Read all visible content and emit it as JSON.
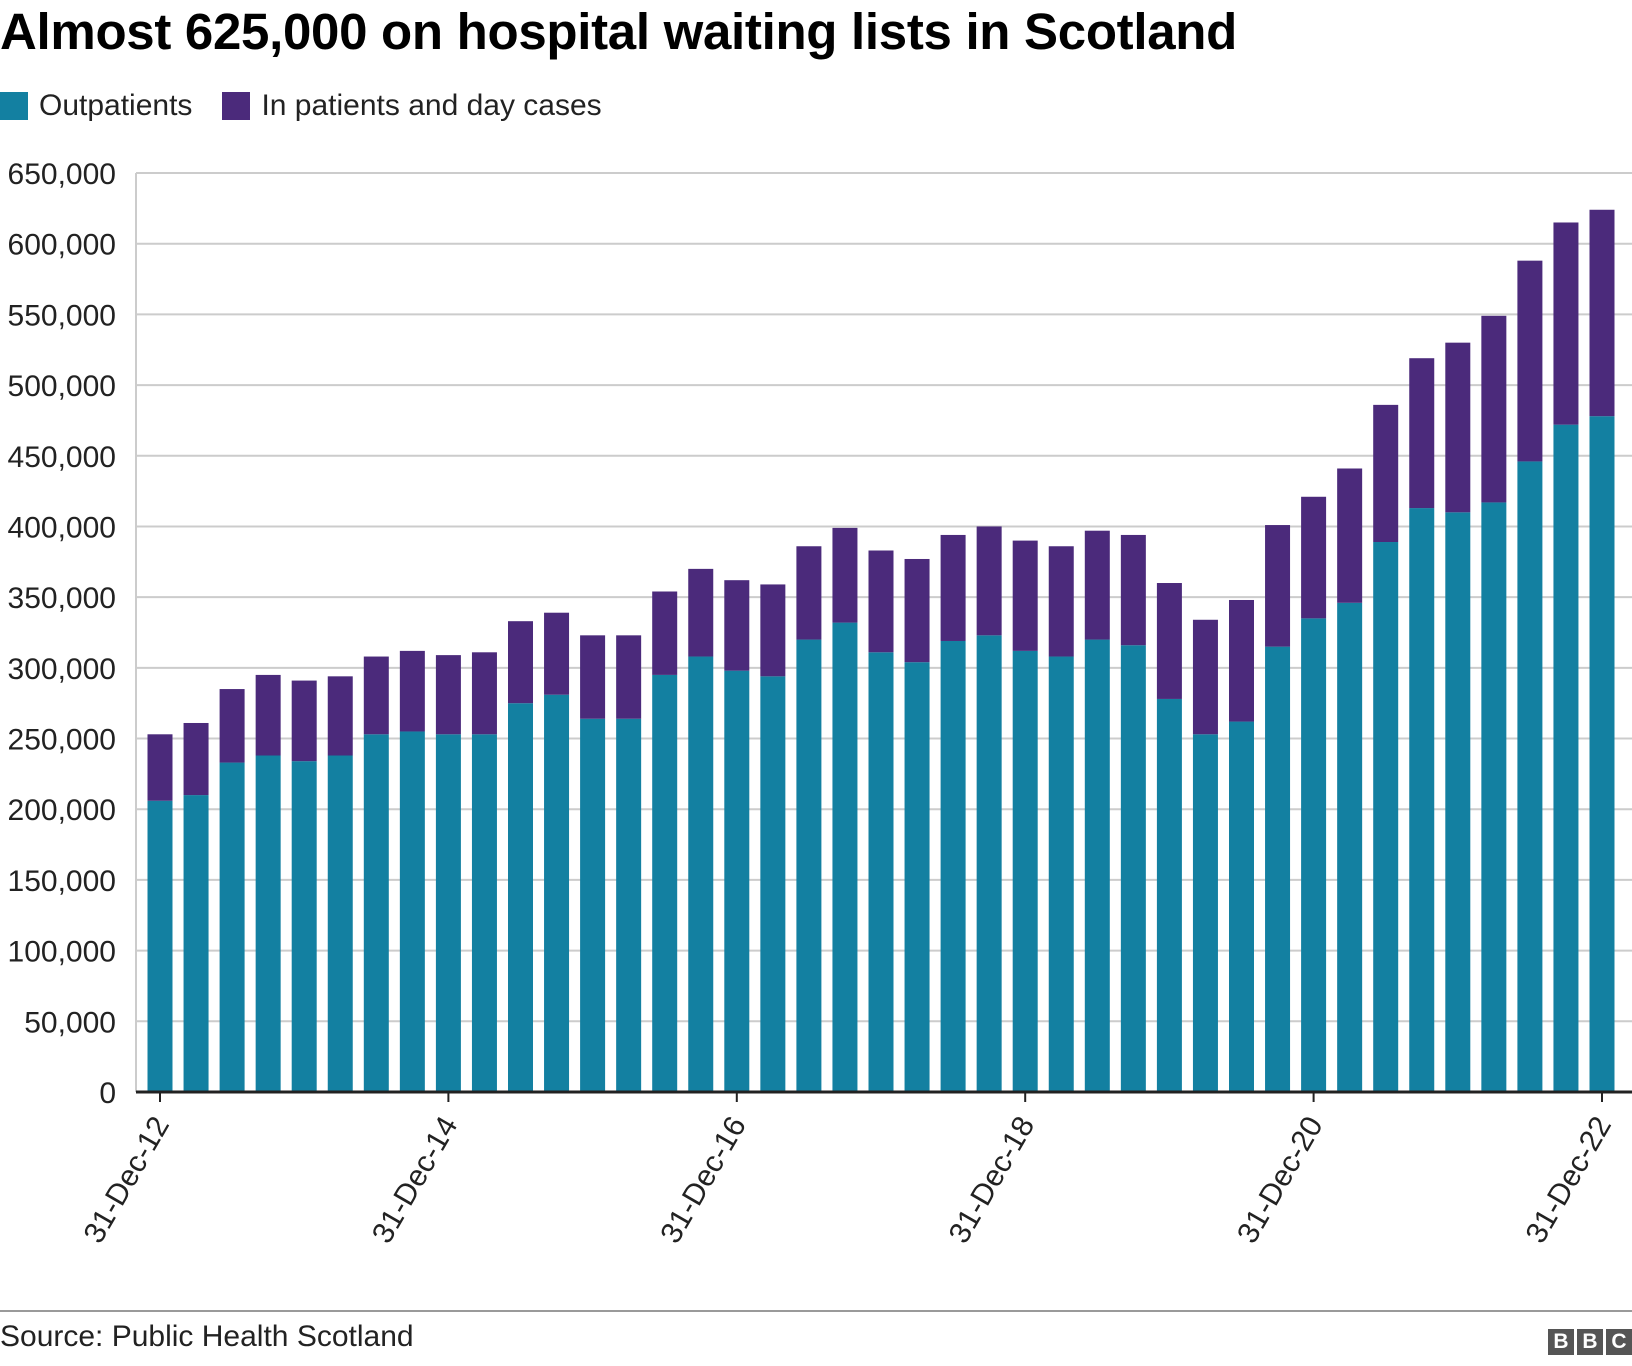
{
  "chart_data": {
    "type": "bar",
    "stacked": true,
    "title": "Almost 625,000 on hospital waiting lists in Scotland",
    "legend": [
      {
        "name": "Outpatients",
        "color": "#1380A1"
      },
      {
        "name": "In patients and day cases",
        "color": "#4B2A7B"
      }
    ],
    "legend_position": "top-left",
    "ylim": [
      0,
      650000
    ],
    "yticks": [
      0,
      50000,
      100000,
      150000,
      200000,
      250000,
      300000,
      350000,
      400000,
      450000,
      500000,
      550000,
      600000,
      650000
    ],
    "ytick_labels": [
      "0",
      "50,000",
      "100,000",
      "150,000",
      "200,000",
      "250,000",
      "300,000",
      "350,000",
      "400,000",
      "450,000",
      "500,000",
      "550,000",
      "600,000",
      "650,000"
    ],
    "grid": true,
    "xlabel": "",
    "ylabel": "",
    "categories": [
      "31-Dec-12",
      "31-Mar-13",
      "30-Jun-13",
      "30-Sep-13",
      "31-Dec-13",
      "31-Mar-14",
      "30-Jun-14",
      "30-Sep-14",
      "31-Dec-14",
      "31-Mar-15",
      "30-Jun-15",
      "30-Sep-15",
      "31-Dec-15",
      "31-Mar-16",
      "30-Jun-16",
      "30-Sep-16",
      "31-Dec-16",
      "31-Mar-17",
      "30-Jun-17",
      "30-Sep-17",
      "31-Dec-17",
      "31-Mar-18",
      "30-Jun-18",
      "30-Sep-18",
      "31-Dec-18",
      "31-Mar-19",
      "30-Jun-19",
      "30-Sep-19",
      "31-Dec-19",
      "31-Mar-20",
      "30-Jun-20",
      "30-Sep-20",
      "31-Dec-20",
      "31-Mar-21",
      "30-Jun-21",
      "30-Sep-21",
      "31-Dec-21",
      "31-Mar-22",
      "30-Jun-22",
      "30-Sep-22",
      "31-Dec-22"
    ],
    "xtick_labels": [
      {
        "index": 0,
        "label": "31-Dec-12"
      },
      {
        "index": 8,
        "label": "31-Dec-14"
      },
      {
        "index": 16,
        "label": "31-Dec-16"
      },
      {
        "index": 24,
        "label": "31-Dec-18"
      },
      {
        "index": 32,
        "label": "31-Dec-20"
      },
      {
        "index": 40,
        "label": "31-Dec-22"
      }
    ],
    "series": [
      {
        "name": "Outpatients",
        "color": "#1380A1",
        "values": [
          206000,
          210000,
          233000,
          238000,
          234000,
          238000,
          253000,
          255000,
          253000,
          253000,
          275000,
          281000,
          264000,
          264000,
          295000,
          308000,
          298000,
          294000,
          320000,
          332000,
          311000,
          304000,
          319000,
          323000,
          312000,
          308000,
          320000,
          316000,
          278000,
          253000,
          262000,
          315000,
          335000,
          346000,
          389000,
          413000,
          410000,
          417000,
          446000,
          472000,
          478000
        ]
      },
      {
        "name": "In patients and day cases",
        "color": "#4B2A7B",
        "values": [
          47000,
          51000,
          52000,
          57000,
          57000,
          56000,
          55000,
          57000,
          56000,
          58000,
          58000,
          58000,
          59000,
          59000,
          59000,
          62000,
          64000,
          65000,
          66000,
          67000,
          72000,
          73000,
          75000,
          77000,
          78000,
          78000,
          77000,
          78000,
          82000,
          81000,
          86000,
          86000,
          86000,
          95000,
          97000,
          106000,
          120000,
          132000,
          142000,
          143000,
          146000
        ]
      }
    ]
  },
  "source": "Source: Public Health Scotland",
  "logo": {
    "letters": [
      "B",
      "B",
      "C"
    ]
  }
}
